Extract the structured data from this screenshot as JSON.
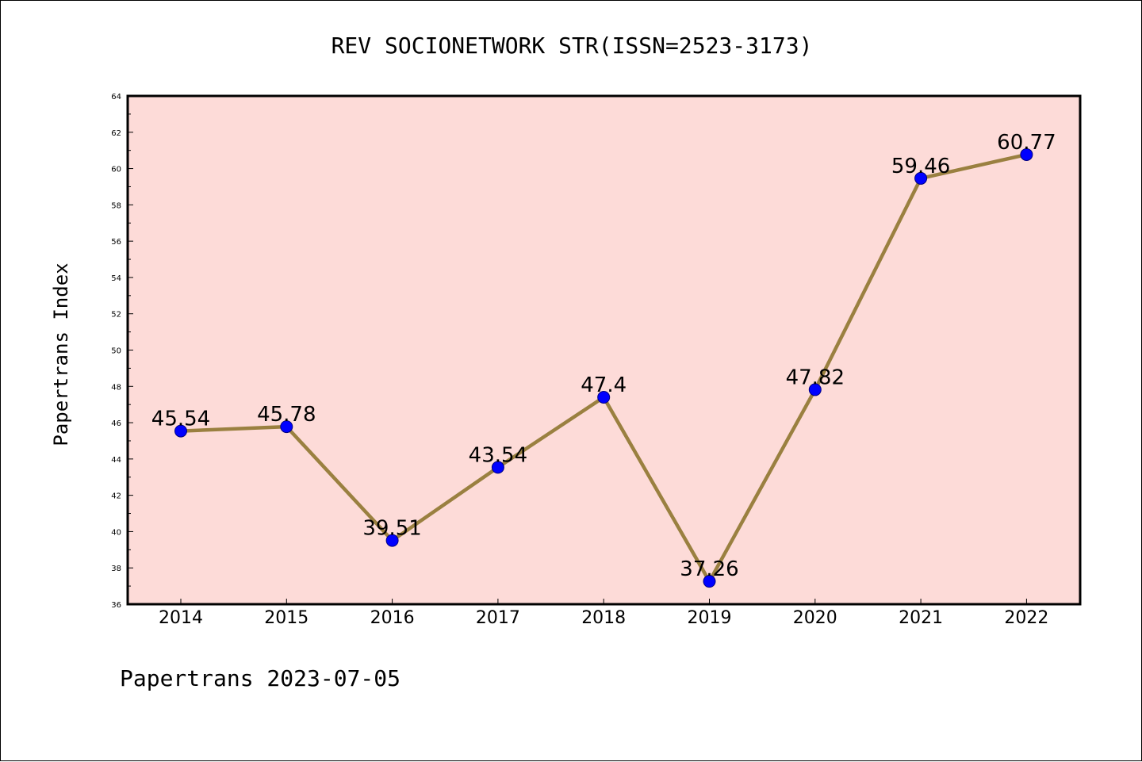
{
  "chart_data": {
    "type": "line",
    "title": "REV SOCIONETWORK STR(ISSN=2523-3173)",
    "xlabel": "",
    "ylabel": "Papertrans Index",
    "categories": [
      "2014",
      "2015",
      "2016",
      "2017",
      "2018",
      "2019",
      "2020",
      "2021",
      "2022"
    ],
    "series": [
      {
        "name": "Papertrans Index",
        "values": [
          45.54,
          45.78,
          39.51,
          43.54,
          47.4,
          37.26,
          47.82,
          59.46,
          60.77
        ],
        "labels": [
          "45.54",
          "45.78",
          "39.51",
          "43.54",
          "47.4",
          "37.26",
          "47.82",
          "59.46",
          "60.77"
        ]
      }
    ],
    "ylim": [
      36,
      64
    ],
    "yticks": [
      "36",
      "38",
      "40",
      "42",
      "44",
      "46",
      "48",
      "50",
      "52",
      "54",
      "56",
      "58",
      "60",
      "62",
      "64"
    ],
    "grid": false,
    "legend": "none"
  },
  "footer": {
    "text": "Papertrans 2023-07-05"
  },
  "colors": {
    "plot_background": "#fddbd8",
    "line": "#9a8040",
    "marker": "#0000ff",
    "marker_edge": "#000080",
    "axes": "#000000"
  }
}
